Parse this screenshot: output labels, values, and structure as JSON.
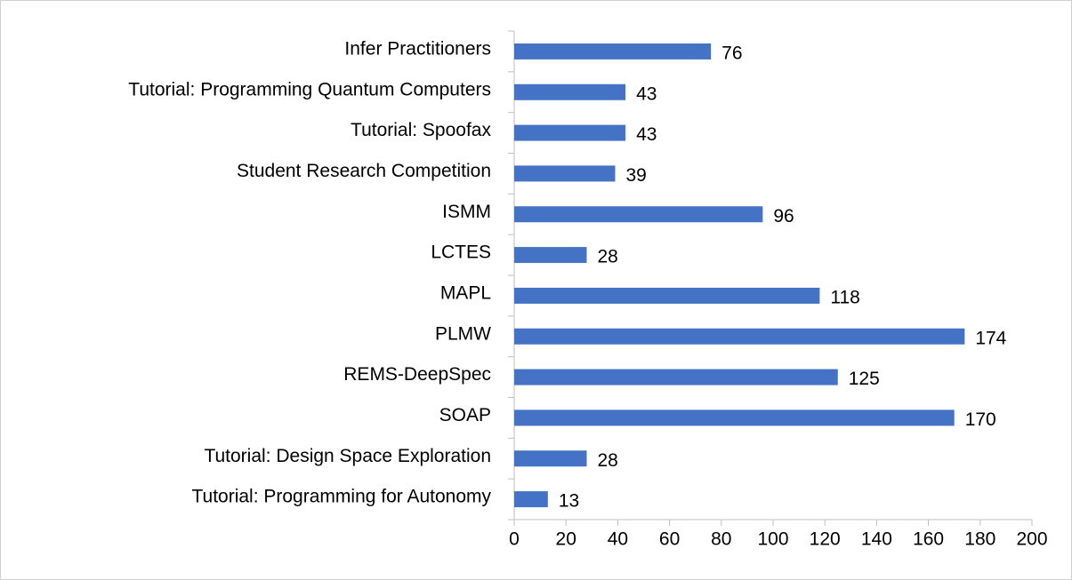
{
  "chart_data": {
    "type": "bar",
    "orientation": "horizontal",
    "categories": [
      "Infer Practitioners",
      "Tutorial: Programming Quantum Computers",
      "Tutorial: Spoofax",
      "Student Research Competition",
      "ISMM",
      "LCTES",
      "MAPL",
      "PLMW",
      "REMS-DeepSpec",
      "SOAP",
      "Tutorial: Design Space Exploration",
      "Tutorial: Programming for Autonomy"
    ],
    "values": [
      76,
      43,
      43,
      39,
      96,
      28,
      118,
      174,
      125,
      170,
      28,
      13
    ],
    "color": "#4472c4",
    "xlim": [
      0,
      200
    ],
    "xticks": [
      0,
      20,
      40,
      60,
      80,
      100,
      120,
      140,
      160,
      180,
      200
    ],
    "grid": false
  }
}
